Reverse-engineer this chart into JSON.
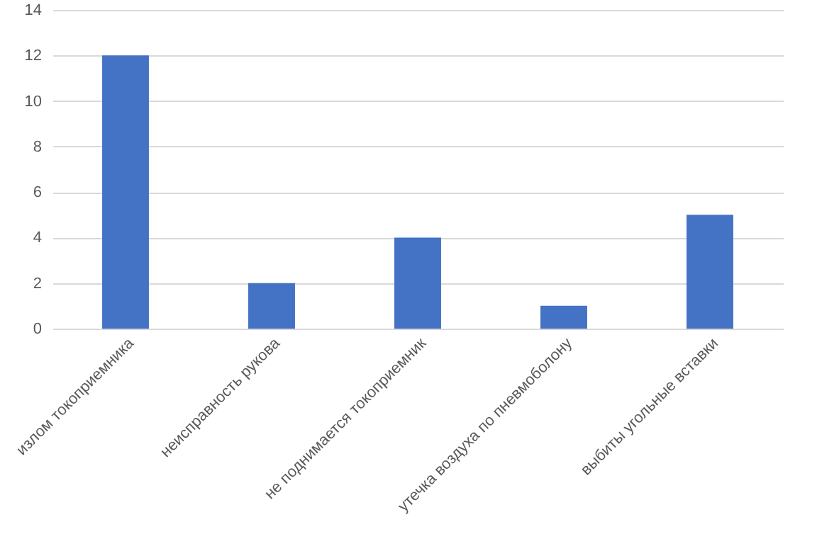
{
  "chart_data": {
    "type": "bar",
    "categories": [
      "излом токоприемника",
      "неисправность рукова",
      "не поднимается токоприемник",
      "утечка воздуха по пневмоболону",
      "выбиты угольные вставки"
    ],
    "values": [
      12,
      2,
      4,
      1,
      5
    ],
    "color": "#4472c4",
    "ylim": [
      0,
      14
    ],
    "yticks": [
      0,
      2,
      4,
      6,
      8,
      10,
      12,
      14
    ],
    "grid": "y"
  }
}
